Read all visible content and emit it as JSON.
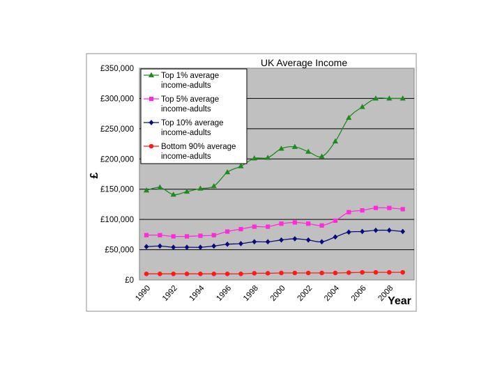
{
  "chart_data": {
    "type": "line",
    "title": "UK Average Income",
    "xlabel": "Year",
    "ylabel": "£",
    "ylim": [
      0,
      350000
    ],
    "yticks": [
      {
        "value": 0,
        "label": "£0"
      },
      {
        "value": 50000,
        "label": "£50,000"
      },
      {
        "value": 100000,
        "label": "£100,000"
      },
      {
        "value": 150000,
        "label": "£150,000"
      },
      {
        "value": 200000,
        "label": "£200,000"
      },
      {
        "value": 250000,
        "label": "£250,000"
      },
      {
        "value": 300000,
        "label": "£300,000"
      },
      {
        "value": 350000,
        "label": "£350,000"
      }
    ],
    "xtick_labels": [
      "1990",
      "1992",
      "1994",
      "1996",
      "1998",
      "2000",
      "2002",
      "2004",
      "2006",
      "2008"
    ],
    "x": [
      1990,
      1991,
      1992,
      1993,
      1994,
      1995,
      1996,
      1997,
      1998,
      1999,
      2000,
      2001,
      2002,
      2003,
      2004,
      2005,
      2006,
      2007,
      2008,
      2009
    ],
    "grid": true,
    "legend_position": "top-left",
    "series": [
      {
        "name": "Top 1% average income-adults",
        "legend_lines": [
          "Top 1% average",
          "income-adults"
        ],
        "color": "#1f8a1f",
        "marker": "triangle",
        "values": [
          148000,
          153000,
          141000,
          146000,
          151000,
          155000,
          178000,
          188000,
          201000,
          202000,
          217000,
          220000,
          212000,
          204000,
          229000,
          268000,
          286000,
          300000,
          300000,
          300000
        ]
      },
      {
        "name": "Top 5% average income-adults",
        "legend_lines": [
          "Top 5% average",
          "income-adults"
        ],
        "color": "#ff2bd9",
        "marker": "square",
        "values": [
          74000,
          74000,
          72000,
          72000,
          73000,
          74000,
          80000,
          84000,
          88000,
          88000,
          93000,
          95000,
          93000,
          90000,
          98000,
          112000,
          115000,
          119000,
          119000,
          117000
        ]
      },
      {
        "name": "Top 10% average income-adults",
        "legend_lines": [
          "Top 10% average",
          "income-adults"
        ],
        "color": "#0a0a7a",
        "marker": "diamond",
        "values": [
          55000,
          56000,
          54000,
          54000,
          54000,
          56000,
          59000,
          60000,
          63000,
          63000,
          66000,
          68000,
          66000,
          63000,
          71000,
          79000,
          80000,
          82000,
          82000,
          80000
        ]
      },
      {
        "name": "Bottom 90% average income-adults",
        "legend_lines": [
          "Bottom 90% average",
          "income-adults"
        ],
        "color": "#ff1a1a",
        "marker": "circle",
        "values": [
          10000,
          10000,
          10000,
          10000,
          10000,
          10000,
          10000,
          10000,
          11000,
          11000,
          11500,
          11500,
          11500,
          11500,
          11500,
          12000,
          12500,
          12500,
          12500,
          12500
        ]
      }
    ]
  }
}
